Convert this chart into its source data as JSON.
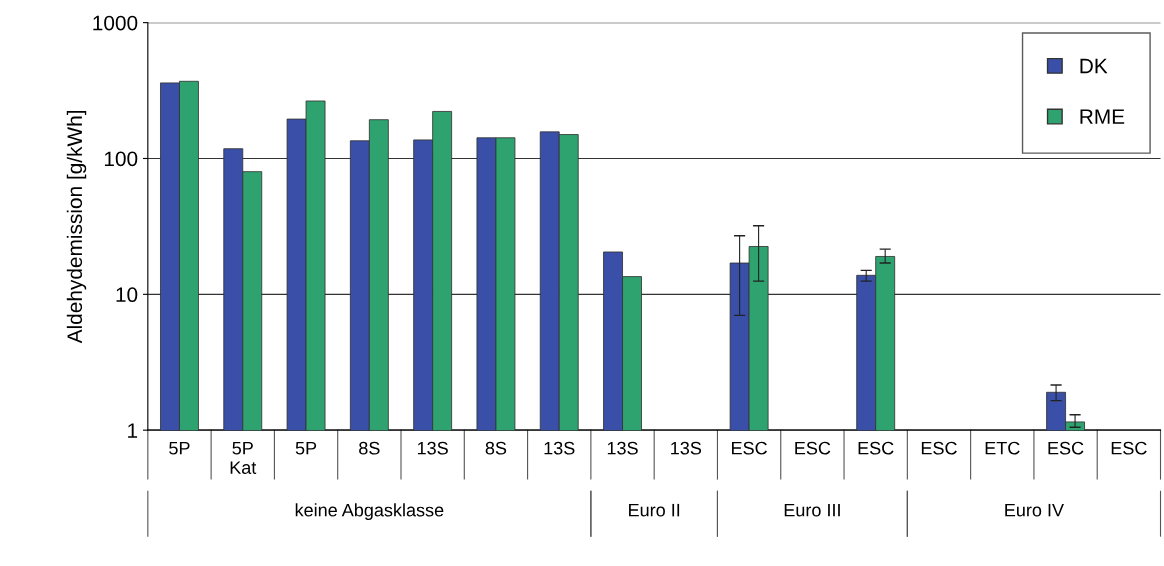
{
  "chart_data": {
    "type": "bar",
    "ylabel": "Aldehydemission [g/kWh]",
    "log": true,
    "ylim": [
      1,
      1000
    ],
    "yticks": [
      1,
      10,
      100,
      1000
    ],
    "grid": "y",
    "legend": "top right",
    "categories": [
      "5P",
      "5P\nKat",
      "5P",
      "8S",
      "13S",
      "8S",
      "13S",
      "13S",
      "13S",
      "ESC",
      "ESC",
      "ESC",
      "ESC",
      "ETC",
      "ESC",
      "ESC"
    ],
    "series": [
      {
        "name": "DK",
        "color": "#3a4fa8",
        "values": [
          360,
          118,
          195,
          135,
          137,
          142,
          157,
          20.5,
          null,
          17,
          null,
          13.8,
          null,
          null,
          1.9,
          null
        ],
        "errors": [
          null,
          null,
          null,
          null,
          null,
          null,
          null,
          null,
          null,
          [
            7,
            27
          ],
          null,
          [
            12.5,
            15
          ],
          null,
          null,
          [
            1.65,
            2.15
          ],
          null
        ]
      },
      {
        "name": "RME",
        "color": "#2ea36f",
        "values": [
          370,
          80,
          265,
          193,
          222,
          142,
          150,
          13.5,
          null,
          22.5,
          null,
          19,
          null,
          null,
          1.15,
          null
        ],
        "errors": [
          null,
          null,
          null,
          null,
          null,
          null,
          null,
          null,
          null,
          [
            12.5,
            32
          ],
          null,
          [
            17,
            21.5
          ],
          null,
          null,
          [
            1.05,
            1.3
          ],
          null
        ]
      }
    ],
    "annotations": [
      "keine Abgasklasse",
      "Euro II",
      "Euro III",
      "Euro IV"
    ]
  }
}
